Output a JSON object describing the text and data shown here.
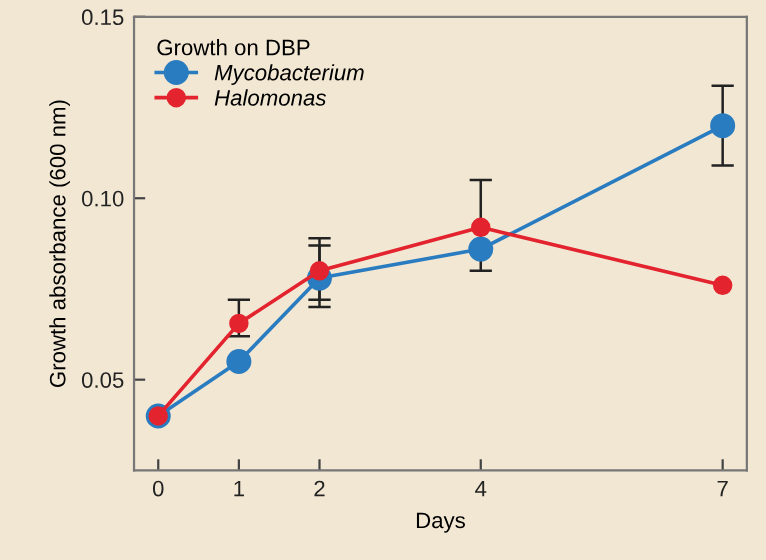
{
  "chart_data": {
    "type": "line",
    "xlabel": "Days",
    "ylabel": "Growth absorbance (600 nm)",
    "legend_title": "Growth on DBP",
    "legend": "top left",
    "marker": "circle",
    "grid": false,
    "x": [
      0,
      1,
      2,
      4,
      7
    ],
    "series": [
      {
        "name": "Mycobacterium",
        "color": "#2a7cc0",
        "values": [
          0.04,
          0.055,
          0.078,
          0.086,
          0.12
        ],
        "errors": [
          null,
          null,
          [
            0.07,
            0.087
          ],
          null,
          [
            0.109,
            0.131
          ]
        ]
      },
      {
        "name": "Halomonas",
        "color": "#e3242f",
        "values": [
          0.04,
          0.0655,
          0.08,
          0.092,
          0.076
        ],
        "errors": [
          null,
          [
            0.062,
            0.072
          ],
          [
            0.072,
            0.089
          ],
          [
            0.08,
            0.105
          ],
          null
        ]
      }
    ],
    "xlim": [
      -0.3,
      7.3
    ],
    "ylim": [
      0.025,
      0.15
    ],
    "xticks": [
      0,
      1,
      2,
      4,
      7
    ],
    "yticks": [
      0.05,
      {
        "value": 0.1,
        "label": "0.10"
      },
      0.15
    ]
  }
}
